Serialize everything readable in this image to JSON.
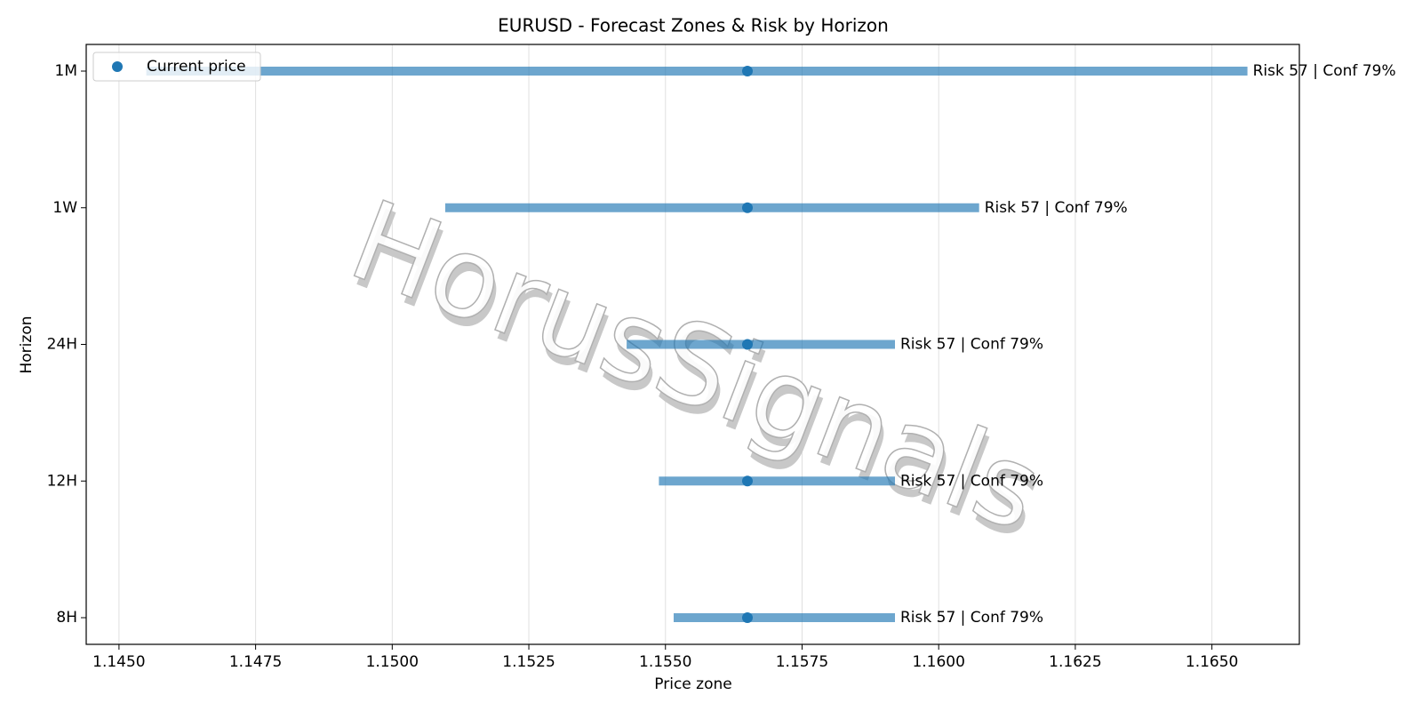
{
  "chart_data": {
    "type": "range",
    "title": "EURUSD - Forecast Zones & Risk by Horizon",
    "x_label": "Price zone",
    "y_label": "Horizon",
    "watermark": "HorusSignals",
    "categories": [
      "8H",
      "12H",
      "24H",
      "1W",
      "1M"
    ],
    "low": [
      1.15515,
      1.15488,
      1.15429,
      1.15097,
      1.1455
    ],
    "high": [
      1.1592,
      1.1592,
      1.1592,
      1.16074,
      1.16565
    ],
    "bar_color": "#1f77b4",
    "current": {
      "name": "Current price",
      "color": "#1f77b4",
      "values": [
        1.1565,
        1.1565,
        1.1565,
        1.1565,
        1.1565
      ]
    },
    "annotations": [
      "Risk 57 | Conf 79%",
      "Risk 57 | Conf 79%",
      "Risk 57 | Conf 79%",
      "Risk 57 | Conf 79%",
      "Risk 57 | Conf 79%"
    ],
    "xlim": [
      1.1444,
      1.1666
    ],
    "xticks": [
      {
        "value": 1.145,
        "label": "1.1450"
      },
      1.1475,
      {
        "value": 1.15,
        "label": "1.1500"
      },
      1.1525,
      {
        "value": 1.155,
        "label": "1.1550"
      },
      1.1575,
      {
        "value": 1.16,
        "label": "1.1600"
      },
      1.1625,
      {
        "value": 1.165,
        "label": "1.1650"
      }
    ],
    "grid": true,
    "legend": "upper left"
  }
}
